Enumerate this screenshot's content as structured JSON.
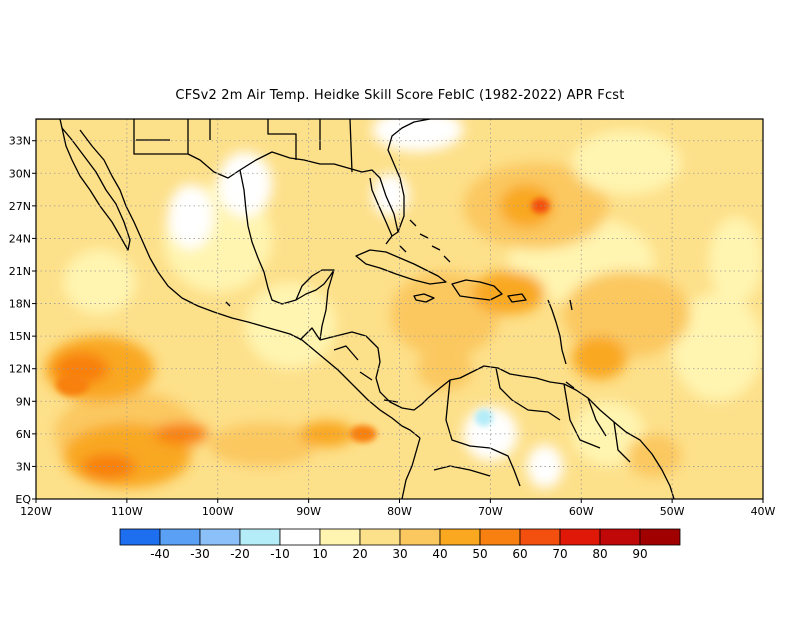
{
  "title": "CFSv2  2m Air Temp. Heidke Skill Score FebIC (1982-2022) APR Fcst",
  "map": {
    "lon_range": [
      -120,
      -40
    ],
    "lat_range": [
      0,
      35
    ],
    "x_ticks": [
      "120W",
      "110W",
      "100W",
      "90W",
      "80W",
      "70W",
      "60W",
      "50W",
      "40W"
    ],
    "y_ticks": [
      "EQ",
      "3N",
      "6N",
      "9N",
      "12N",
      "15N",
      "18N",
      "21N",
      "24N",
      "27N",
      "30N",
      "33N"
    ],
    "grid_lines": "dotted"
  },
  "colorbar": {
    "labels": [
      "-40",
      "-30",
      "-20",
      "-10",
      "10",
      "20",
      "30",
      "40",
      "50",
      "60",
      "70",
      "80",
      "90"
    ],
    "colors": [
      "#1e6ff0",
      "#5aa0f5",
      "#8cc0f8",
      "#b4ecf8",
      "#ffffff",
      "#fff4b0",
      "#fde08a",
      "#fbc860",
      "#f9a820",
      "#f88010",
      "#f35010",
      "#e01808",
      "#c00808",
      "#a00000"
    ]
  },
  "palette": {
    "ocean_base": "#fde08a",
    "light": "#fff4b0",
    "mid": "#fbc860",
    "strong": "#f9a820",
    "hot": "#f88010",
    "hotter": "#f35010",
    "white": "#ffffff",
    "cyan": "#b4ecf8"
  }
}
